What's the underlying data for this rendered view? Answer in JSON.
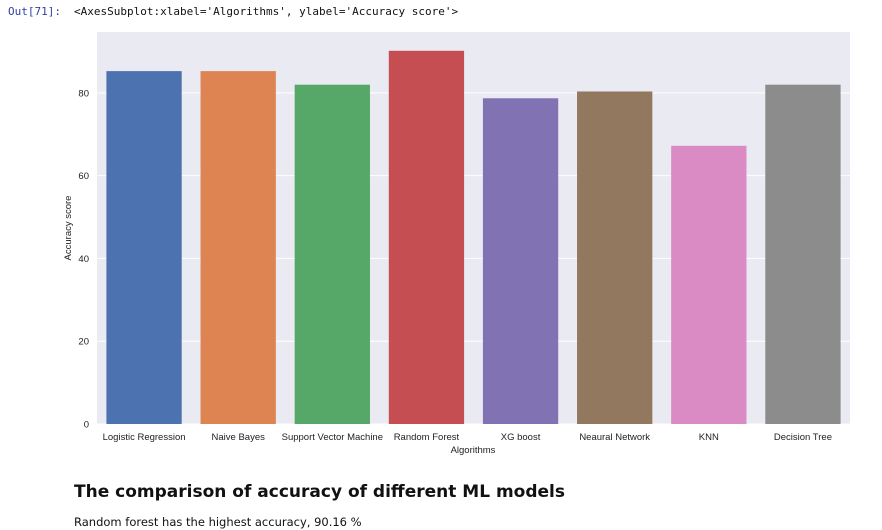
{
  "cell": {
    "prompt": "Out[71]:",
    "output_repr": "<AxesSubplot:xlabel='Algorithms', ylabel='Accuracy score'>"
  },
  "chart_data": {
    "type": "bar",
    "categories": [
      "Logistic Regression",
      "Naive Bayes",
      "Support Vector Machine",
      "Random Forest",
      "XG boost",
      "Neaural Network",
      "KNN",
      "Decision Tree"
    ],
    "values": [
      85.25,
      85.25,
      81.97,
      90.16,
      78.69,
      80.33,
      67.21,
      81.97
    ],
    "colors": [
      "#4c72b0",
      "#dd8452",
      "#55a868",
      "#c44e52",
      "#8172b3",
      "#937860",
      "#da8bc3",
      "#8c8c8c"
    ],
    "xlabel": "Algorithms",
    "ylabel": "Accuracy score",
    "ylim": [
      0,
      94.7
    ],
    "yticks": [
      0,
      20,
      40,
      60,
      80
    ],
    "grid": true,
    "background": "#eaeaf2"
  },
  "markdown": {
    "heading": "The comparison of accuracy of different ML models",
    "text": "Random forest has the highest accuracy, 90.16 %"
  }
}
